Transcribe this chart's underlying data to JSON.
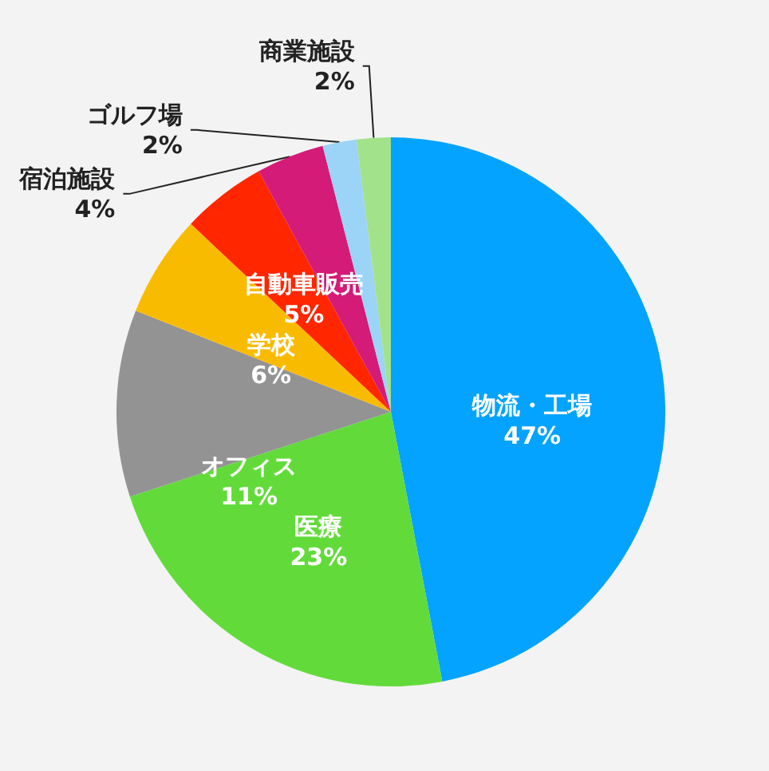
{
  "chart_data": {
    "type": "pie",
    "categories": [
      "物流・工場",
      "医療",
      "オフィス",
      "学校",
      "自動車販売",
      "宿泊施設",
      "ゴルフ場",
      "商業施設"
    ],
    "values": [
      47,
      23,
      11,
      6,
      5,
      4,
      2,
      2
    ],
    "value_labels": [
      "47%",
      "23%",
      "11%",
      "6%",
      "5%",
      "4%",
      "2%",
      "2%"
    ],
    "colors": [
      "#03a3ff",
      "#62db3a",
      "#939393",
      "#f9bb00",
      "#ff2600",
      "#d41b77",
      "#9bd4f6",
      "#a2e28a"
    ]
  }
}
